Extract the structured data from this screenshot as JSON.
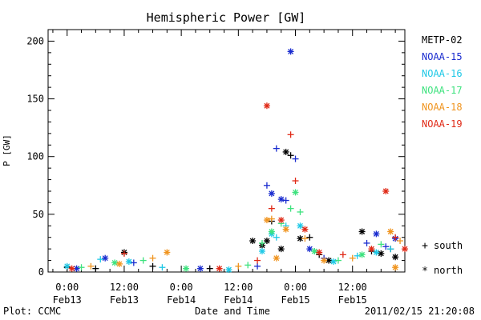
{
  "chart_data": {
    "type": "scatter",
    "title": "Hemispheric Power [GW]",
    "xlabel": "Date and Time",
    "ylabel": "P [GW]",
    "xlim": [
      "2011-02-12T20:00",
      "2011-02-15T23:00"
    ],
    "ylim": [
      0,
      210
    ],
    "yticks": [
      0,
      50,
      100,
      150,
      200
    ],
    "xticks": [
      {
        "t": "2011-02-13T00:00",
        "line1": "0:00",
        "line2": "Feb13"
      },
      {
        "t": "2011-02-13T12:00",
        "line1": "12:00",
        "line2": "Feb13"
      },
      {
        "t": "2011-02-14T00:00",
        "line1": "0:00",
        "line2": "Feb14"
      },
      {
        "t": "2011-02-14T12:00",
        "line1": "12:00",
        "line2": "Feb14"
      },
      {
        "t": "2011-02-15T00:00",
        "line1": "0:00",
        "line2": "Feb15"
      },
      {
        "t": "2011-02-15T12:00",
        "line1": "12:00",
        "line2": "Feb15"
      }
    ],
    "grid": false,
    "legend_position": "right",
    "marker_legend": {
      "south": "south",
      "north": "north",
      "south_symbol": "+",
      "north_symbol": "*"
    },
    "series": [
      {
        "name": "METP-02",
        "color": "#000000",
        "points": [
          [
            "2011-02-13T00:00",
            4,
            "s"
          ],
          [
            "2011-02-13T06:00",
            3,
            "s"
          ],
          [
            "2011-02-13T12:00",
            17,
            "n"
          ],
          [
            "2011-02-13T18:00",
            5,
            "s"
          ],
          [
            "2011-02-14T06:00",
            3,
            "s"
          ],
          [
            "2011-02-14T15:00",
            27,
            "n"
          ],
          [
            "2011-02-14T17:00",
            23,
            "n"
          ],
          [
            "2011-02-14T18:00",
            27,
            "n"
          ],
          [
            "2011-02-14T19:00",
            44,
            "s"
          ],
          [
            "2011-02-14T21:00",
            20,
            "n"
          ],
          [
            "2011-02-14T22:00",
            104,
            "n"
          ],
          [
            "2011-02-14T23:00",
            101,
            "s"
          ],
          [
            "2011-02-15T01:00",
            29,
            "n"
          ],
          [
            "2011-02-15T03:00",
            30,
            "s"
          ],
          [
            "2011-02-15T05:00",
            15,
            "s"
          ],
          [
            "2011-02-15T07:00",
            10,
            "n"
          ],
          [
            "2011-02-15T14:00",
            35,
            "n"
          ],
          [
            "2011-02-15T16:00",
            18,
            "s"
          ],
          [
            "2011-02-15T18:00",
            16,
            "n"
          ],
          [
            "2011-02-15T20:00",
            20,
            "s"
          ],
          [
            "2011-02-15T21:00",
            13,
            "n"
          ]
        ]
      },
      {
        "name": "NOAA-15",
        "color": "#1a2ccf",
        "points": [
          [
            "2011-02-13T02:00",
            3,
            "n"
          ],
          [
            "2011-02-13T08:00",
            12,
            "n"
          ],
          [
            "2011-02-13T14:00",
            8,
            "s"
          ],
          [
            "2011-02-14T04:00",
            3,
            "n"
          ],
          [
            "2011-02-14T16:00",
            5,
            "s"
          ],
          [
            "2011-02-14T18:00",
            75,
            "s"
          ],
          [
            "2011-02-14T19:00",
            68,
            "n"
          ],
          [
            "2011-02-14T20:00",
            107,
            "s"
          ],
          [
            "2011-02-14T21:00",
            63,
            "n"
          ],
          [
            "2011-02-14T22:00",
            62,
            "s"
          ],
          [
            "2011-02-14T23:00",
            191,
            "n"
          ],
          [
            "2011-02-15T00:00",
            98,
            "s"
          ],
          [
            "2011-02-15T03:00",
            20,
            "n"
          ],
          [
            "2011-02-15T06:00",
            12,
            "s"
          ],
          [
            "2011-02-15T15:00",
            25,
            "s"
          ],
          [
            "2011-02-15T17:00",
            33,
            "n"
          ],
          [
            "2011-02-15T19:00",
            22,
            "s"
          ],
          [
            "2011-02-15T21:00",
            29,
            "n"
          ]
        ]
      },
      {
        "name": "NOAA-16",
        "color": "#1ec8e6",
        "points": [
          [
            "2011-02-13T00:00",
            5,
            "n"
          ],
          [
            "2011-02-13T07:00",
            11,
            "s"
          ],
          [
            "2011-02-13T13:00",
            9,
            "n"
          ],
          [
            "2011-02-13T20:00",
            4,
            "s"
          ],
          [
            "2011-02-14T10:00",
            2,
            "n"
          ],
          [
            "2011-02-14T17:00",
            18,
            "n"
          ],
          [
            "2011-02-14T19:00",
            33,
            "n"
          ],
          [
            "2011-02-14T20:00",
            30,
            "s"
          ],
          [
            "2011-02-14T22:00",
            40,
            "s"
          ],
          [
            "2011-02-15T01:00",
            40,
            "n"
          ],
          [
            "2011-02-15T04:00",
            18,
            "s"
          ],
          [
            "2011-02-15T08:00",
            9,
            "n"
          ],
          [
            "2011-02-15T13:00",
            14,
            "s"
          ],
          [
            "2011-02-15T17:00",
            17,
            "n"
          ],
          [
            "2011-02-15T20:00",
            20,
            "s"
          ]
        ]
      },
      {
        "name": "NOAA-17",
        "color": "#3ee27e",
        "points": [
          [
            "2011-02-13T03:00",
            4,
            "s"
          ],
          [
            "2011-02-13T10:00",
            8,
            "n"
          ],
          [
            "2011-02-13T16:00",
            10,
            "s"
          ],
          [
            "2011-02-14T01:00",
            3,
            "n"
          ],
          [
            "2011-02-14T14:00",
            6,
            "s"
          ],
          [
            "2011-02-14T17:00",
            25,
            "s"
          ],
          [
            "2011-02-14T19:00",
            35,
            "n"
          ],
          [
            "2011-02-14T21:00",
            42,
            "s"
          ],
          [
            "2011-02-14T23:00",
            55,
            "s"
          ],
          [
            "2011-02-15T00:00",
            69,
            "n"
          ],
          [
            "2011-02-15T01:00",
            52,
            "s"
          ],
          [
            "2011-02-15T04:00",
            18,
            "n"
          ],
          [
            "2011-02-15T09:00",
            10,
            "s"
          ],
          [
            "2011-02-15T14:00",
            15,
            "n"
          ],
          [
            "2011-02-15T18:00",
            24,
            "s"
          ]
        ]
      },
      {
        "name": "NOAA-18",
        "color": "#f0941e",
        "points": [
          [
            "2011-02-13T05:00",
            5,
            "s"
          ],
          [
            "2011-02-13T11:00",
            7,
            "n"
          ],
          [
            "2011-02-13T18:00",
            12,
            "s"
          ],
          [
            "2011-02-13T21:00",
            17,
            "n"
          ],
          [
            "2011-02-14T12:00",
            5,
            "s"
          ],
          [
            "2011-02-14T18:00",
            45,
            "n"
          ],
          [
            "2011-02-14T19:00",
            46,
            "s"
          ],
          [
            "2011-02-14T20:00",
            12,
            "n"
          ],
          [
            "2011-02-14T22:00",
            37,
            "n"
          ],
          [
            "2011-02-15T02:00",
            29,
            "s"
          ],
          [
            "2011-02-15T06:00",
            10,
            "n"
          ],
          [
            "2011-02-15T12:00",
            12,
            "s"
          ],
          [
            "2011-02-15T20:00",
            35,
            "n"
          ],
          [
            "2011-02-15T21:00",
            4,
            "n"
          ],
          [
            "2011-02-15T22:00",
            27,
            "s"
          ]
        ]
      },
      {
        "name": "NOAA-19",
        "color": "#e02a17",
        "points": [
          [
            "2011-02-13T01:00",
            3,
            "n"
          ],
          [
            "2011-02-13T12:00",
            16,
            "s"
          ],
          [
            "2011-02-14T08:00",
            3,
            "n"
          ],
          [
            "2011-02-14T16:00",
            10,
            "s"
          ],
          [
            "2011-02-14T18:00",
            144,
            "n"
          ],
          [
            "2011-02-14T19:00",
            55,
            "s"
          ],
          [
            "2011-02-14T21:00",
            45,
            "n"
          ],
          [
            "2011-02-14T23:00",
            119,
            "s"
          ],
          [
            "2011-02-15T00:00",
            79,
            "s"
          ],
          [
            "2011-02-15T02:00",
            37,
            "n"
          ],
          [
            "2011-02-15T05:00",
            17,
            "n"
          ],
          [
            "2011-02-15T10:00",
            15,
            "s"
          ],
          [
            "2011-02-15T16:00",
            20,
            "n"
          ],
          [
            "2011-02-15T19:00",
            70,
            "n"
          ],
          [
            "2011-02-15T21:00",
            30,
            "s"
          ],
          [
            "2011-02-15T23:00",
            20,
            "n"
          ]
        ]
      }
    ]
  },
  "footer": {
    "plot_credit": "Plot: CCMC",
    "timestamp": "2011/02/15 21:20:08"
  }
}
